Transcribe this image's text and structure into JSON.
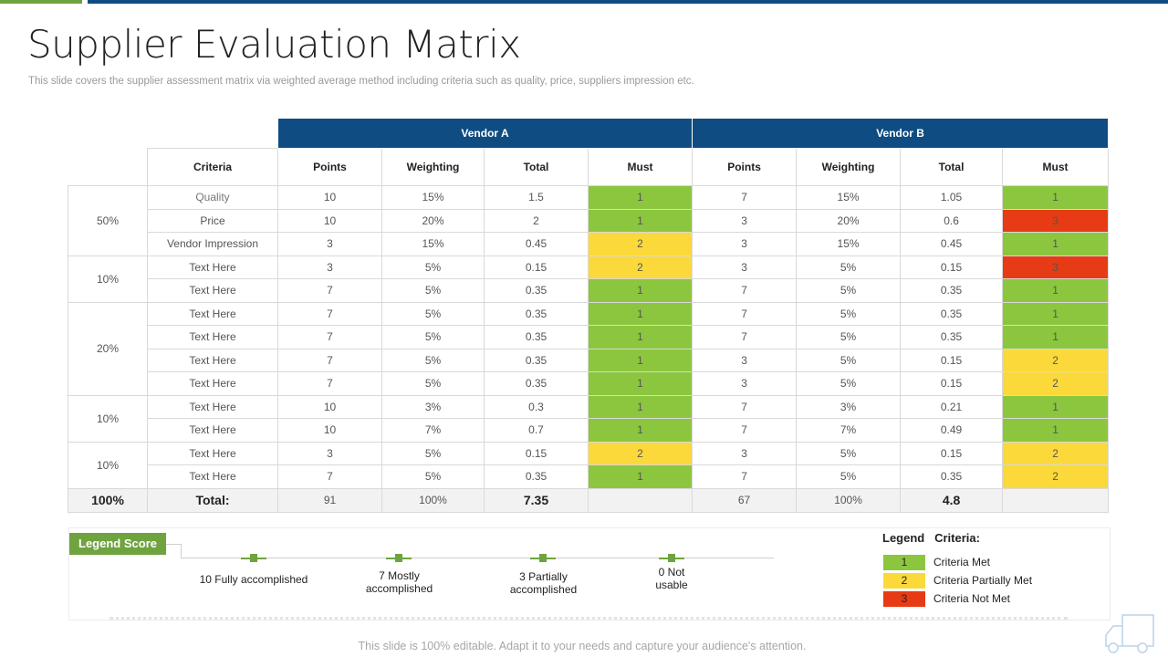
{
  "title": "Supplier Evaluation Matrix",
  "subtitle": "This slide covers the supplier  assessment matrix via weighted average method including criteria such as quality, price, suppliers impression etc.",
  "vendors": [
    "Vendor A",
    "Vendor B"
  ],
  "headers": {
    "criteria": "Criteria",
    "points": "Points",
    "weighting": "Weighting",
    "total": "Total",
    "must": "Must"
  },
  "groups": [
    "50%",
    "10%",
    "20%",
    "10%",
    "10%"
  ],
  "rows": [
    {
      "criteria": "Quality",
      "a": {
        "points": "10",
        "weighting": "15%",
        "total": "1.5",
        "must": "1",
        "status": "green"
      },
      "b": {
        "points": "7",
        "weighting": "15%",
        "total": "1.05",
        "must": "1",
        "status": "green"
      }
    },
    {
      "criteria": "Price",
      "a": {
        "points": "10",
        "weighting": "20%",
        "total": "2",
        "must": "1",
        "status": "green"
      },
      "b": {
        "points": "3",
        "weighting": "20%",
        "total": "0.6",
        "must": "3",
        "status": "red"
      }
    },
    {
      "criteria": "Vendor Impression",
      "a": {
        "points": "3",
        "weighting": "15%",
        "total": "0.45",
        "must": "2",
        "status": "yellow"
      },
      "b": {
        "points": "3",
        "weighting": "15%",
        "total": "0.45",
        "must": "1",
        "status": "green"
      }
    },
    {
      "criteria": "Text Here",
      "a": {
        "points": "3",
        "weighting": "5%",
        "total": "0.15",
        "must": "2",
        "status": "yellow"
      },
      "b": {
        "points": "3",
        "weighting": "5%",
        "total": "0.15",
        "must": "3",
        "status": "red"
      }
    },
    {
      "criteria": "Text Here",
      "a": {
        "points": "7",
        "weighting": "5%",
        "total": "0.35",
        "must": "1",
        "status": "green"
      },
      "b": {
        "points": "7",
        "weighting": "5%",
        "total": "0.35",
        "must": "1",
        "status": "green"
      }
    },
    {
      "criteria": "Text Here",
      "a": {
        "points": "7",
        "weighting": "5%",
        "total": "0.35",
        "must": "1",
        "status": "green"
      },
      "b": {
        "points": "7",
        "weighting": "5%",
        "total": "0.35",
        "must": "1",
        "status": "green"
      }
    },
    {
      "criteria": "Text Here",
      "a": {
        "points": "7",
        "weighting": "5%",
        "total": "0.35",
        "must": "1",
        "status": "green"
      },
      "b": {
        "points": "7",
        "weighting": "5%",
        "total": "0.35",
        "must": "1",
        "status": "green"
      }
    },
    {
      "criteria": "Text Here",
      "a": {
        "points": "7",
        "weighting": "5%",
        "total": "0.35",
        "must": "1",
        "status": "green"
      },
      "b": {
        "points": "3",
        "weighting": "5%",
        "total": "0.15",
        "must": "2",
        "status": "yellow"
      }
    },
    {
      "criteria": "Text Here",
      "a": {
        "points": "7",
        "weighting": "5%",
        "total": "0.35",
        "must": "1",
        "status": "green"
      },
      "b": {
        "points": "3",
        "weighting": "5%",
        "total": "0.15",
        "must": "2",
        "status": "yellow"
      }
    },
    {
      "criteria": "Text Here",
      "a": {
        "points": "10",
        "weighting": "3%",
        "total": "0.3",
        "must": "1",
        "status": "green"
      },
      "b": {
        "points": "7",
        "weighting": "3%",
        "total": "0.21",
        "must": "1",
        "status": "green"
      }
    },
    {
      "criteria": "Text Here",
      "a": {
        "points": "10",
        "weighting": "7%",
        "total": "0.7",
        "must": "1",
        "status": "green"
      },
      "b": {
        "points": "7",
        "weighting": "7%",
        "total": "0.49",
        "must": "1",
        "status": "green"
      }
    },
    {
      "criteria": "Text Here",
      "a": {
        "points": "3",
        "weighting": "5%",
        "total": "0.15",
        "must": "2",
        "status": "yellow"
      },
      "b": {
        "points": "3",
        "weighting": "5%",
        "total": "0.15",
        "must": "2",
        "status": "yellow"
      }
    },
    {
      "criteria": "Text Here",
      "a": {
        "points": "7",
        "weighting": "5%",
        "total": "0.35",
        "must": "1",
        "status": "green"
      },
      "b": {
        "points": "7",
        "weighting": "5%",
        "total": "0.35",
        "must": "2",
        "status": "yellow"
      }
    }
  ],
  "totals": {
    "percent": "100%",
    "label": "Total:",
    "a": {
      "points": "91",
      "weighting": "100%",
      "total": "7.35"
    },
    "b": {
      "points": "67",
      "weighting": "100%",
      "total": "4.8"
    }
  },
  "legend_score": {
    "tag": "Legend Score",
    "items": [
      "10 Fully accomplished",
      "7 Mostly accomplished",
      "3 Partially accomplished",
      "0 Not usable"
    ]
  },
  "legend_criteria": {
    "title_left": "Legend",
    "title_right": "Criteria:",
    "items": [
      {
        "value": "1",
        "label": "Criteria Met",
        "status": "green"
      },
      {
        "value": "2",
        "label": "Criteria Partially Met",
        "status": "yellow"
      },
      {
        "value": "3",
        "label": "Criteria Not Met",
        "status": "red"
      }
    ]
  },
  "footer": "This slide is 100% editable. Adapt it to your needs and capture your audience's attention.",
  "colors": {
    "green": "#8cc63f",
    "yellow": "#fbd93b",
    "red": "#e63b14",
    "navy": "#0f4c81",
    "accent": "#6fa33f"
  }
}
